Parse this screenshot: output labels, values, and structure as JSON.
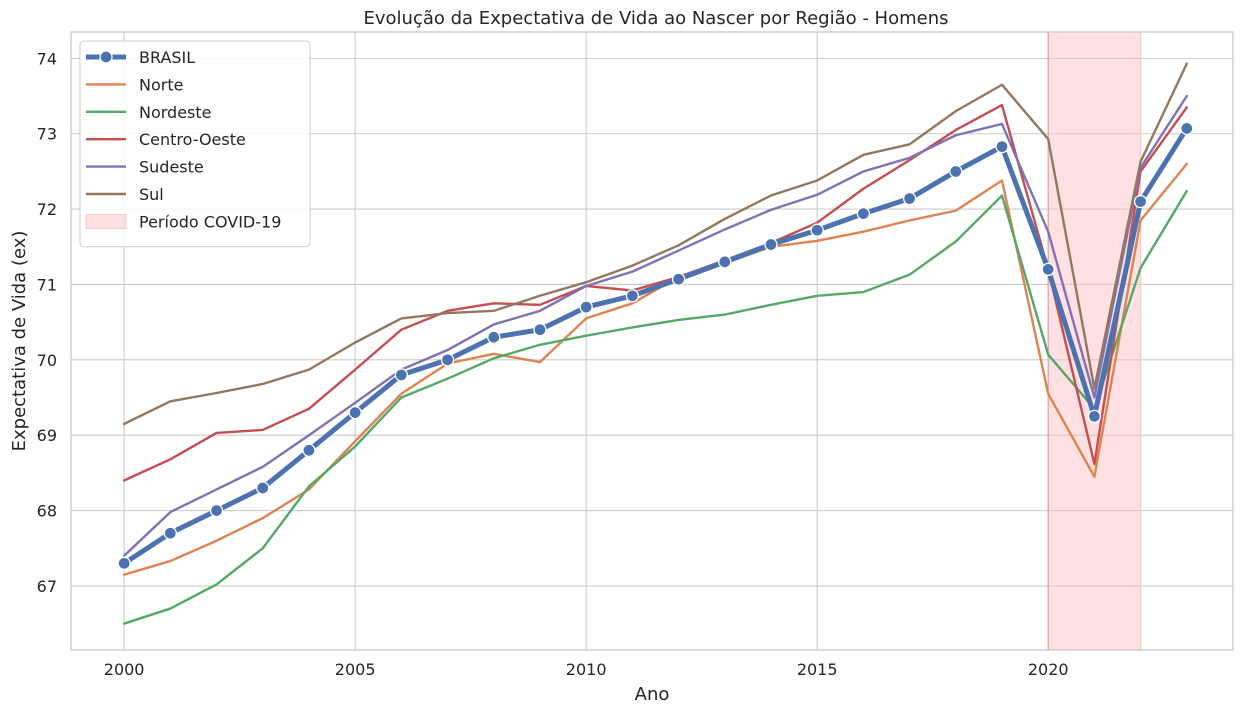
{
  "chart_data": {
    "type": "line",
    "title": "Evolução da Expectativa de Vida ao Nascer por Região - Homens",
    "xlabel": "Ano",
    "ylabel": "Expectativa de Vida (ex)",
    "xlim": [
      1998.85,
      2024.0
    ],
    "ylim": [
      66.15,
      74.35
    ],
    "xticks": [
      2000,
      2005,
      2010,
      2015,
      2020
    ],
    "yticks": [
      67,
      68,
      69,
      70,
      71,
      72,
      73,
      74
    ],
    "grid": true,
    "legend_position": "top-left",
    "x": [
      2000,
      2001,
      2002,
      2003,
      2004,
      2005,
      2006,
      2007,
      2008,
      2009,
      2010,
      2011,
      2012,
      2013,
      2014,
      2015,
      2016,
      2017,
      2018,
      2019,
      2020,
      2021,
      2022,
      2023
    ],
    "series": [
      {
        "name": "BRASIL",
        "color": "#4c72b0",
        "emphasis": true,
        "values": [
          67.3,
          67.7,
          68.0,
          68.3,
          68.8,
          69.3,
          69.8,
          70.0,
          70.3,
          70.4,
          70.7,
          70.85,
          71.07,
          71.3,
          71.53,
          71.72,
          71.94,
          72.14,
          72.5,
          72.83,
          71.2,
          69.25,
          72.1,
          73.07
        ]
      },
      {
        "name": "Norte",
        "color": "#dd8452",
        "values": [
          67.15,
          67.33,
          67.6,
          67.9,
          68.28,
          68.92,
          69.55,
          69.95,
          70.08,
          69.97,
          70.55,
          70.75,
          71.1,
          71.28,
          71.5,
          71.58,
          71.7,
          71.85,
          71.98,
          72.38,
          69.55,
          68.45,
          71.85,
          72.6
        ]
      },
      {
        "name": "Nordeste",
        "color": "#55a868",
        "values": [
          66.5,
          66.7,
          67.02,
          67.5,
          68.32,
          68.85,
          69.5,
          69.75,
          70.02,
          70.2,
          70.32,
          70.43,
          70.53,
          70.6,
          70.73,
          70.85,
          70.9,
          71.13,
          71.57,
          72.18,
          70.07,
          69.35,
          71.22,
          72.24
        ]
      },
      {
        "name": "Centro-Oeste",
        "color": "#c44e52",
        "values": [
          68.4,
          68.68,
          69.03,
          69.07,
          69.35,
          69.87,
          70.4,
          70.65,
          70.75,
          70.73,
          70.98,
          70.92,
          71.1,
          71.32,
          71.55,
          71.82,
          72.27,
          72.65,
          73.05,
          73.38,
          71.2,
          68.62,
          72.5,
          73.35
        ]
      },
      {
        "name": "Sudeste",
        "color": "#8172b3",
        "values": [
          67.4,
          67.98,
          68.28,
          68.58,
          69.0,
          69.43,
          69.87,
          70.13,
          70.47,
          70.65,
          70.98,
          71.17,
          71.45,
          71.73,
          71.99,
          72.19,
          72.5,
          72.68,
          72.98,
          73.13,
          71.7,
          69.5,
          72.55,
          73.5
        ]
      },
      {
        "name": "Sul",
        "color": "#937860",
        "values": [
          69.15,
          69.45,
          69.56,
          69.68,
          69.87,
          70.23,
          70.55,
          70.62,
          70.65,
          70.85,
          71.03,
          71.25,
          71.52,
          71.87,
          72.18,
          72.38,
          72.72,
          72.86,
          73.3,
          73.65,
          72.93,
          69.62,
          72.63,
          73.93
        ]
      }
    ],
    "covid_band": {
      "label": "Período COVID-19",
      "x_start": 2020,
      "x_end": 2022,
      "color": "#ffb3ba"
    }
  }
}
